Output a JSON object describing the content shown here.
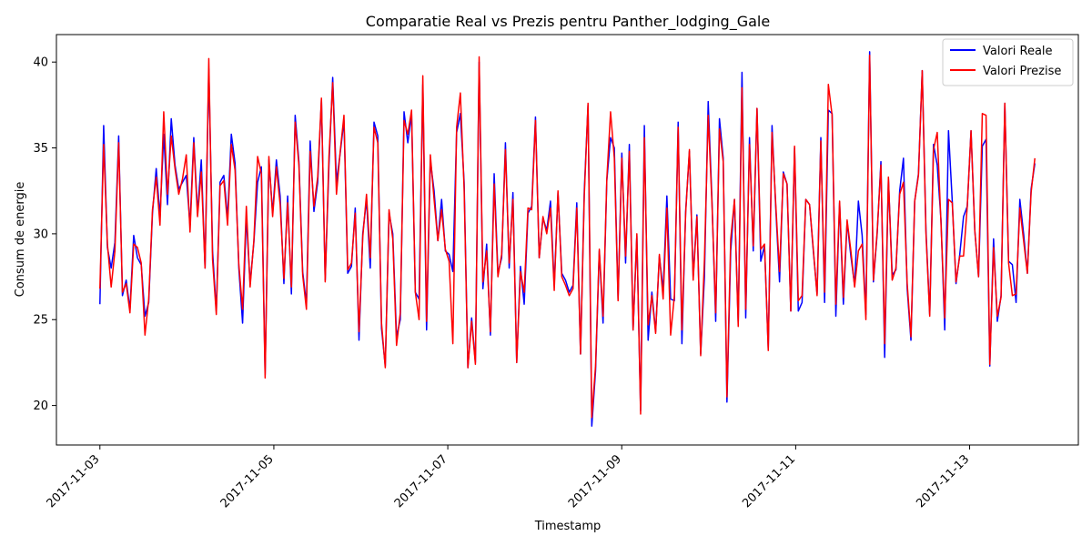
{
  "chart_data": {
    "type": "line",
    "title": "Comparatie Real vs Prezis pentru Panther_lodging_Gale",
    "xlabel": "Timestamp",
    "ylabel": "Consum de energie",
    "x_start": "2017-11-03",
    "x_end": "2017-11-13 18:00",
    "xlim": [
      "2017-11-02 12:00",
      "2017-11-14 06:00"
    ],
    "ylim": [
      17.7,
      41.6
    ],
    "x_ticks": [
      "2017-11-03",
      "2017-11-05",
      "2017-11-07",
      "2017-11-09",
      "2017-11-11",
      "2017-11-13"
    ],
    "y_ticks": [
      20,
      25,
      30,
      35,
      40
    ],
    "grid": false,
    "legend": {
      "position": "top-right"
    },
    "series": [
      {
        "name": "Valori Reale",
        "color": "#0000ff",
        "values": [
          25.9,
          36.3,
          29.2,
          28.0,
          29.5,
          35.7,
          26.4,
          27.3,
          25.6,
          29.9,
          28.6,
          28.2,
          25.2,
          26.0,
          31.2,
          33.8,
          31.0,
          35.8,
          31.7,
          36.7,
          34.0,
          32.6,
          33.0,
          33.4,
          30.5,
          35.6,
          31.2,
          34.3,
          28.0,
          39.6,
          29.0,
          25.5,
          33.0,
          33.4,
          30.9,
          35.8,
          34.1,
          28.0,
          24.8,
          31.0,
          27.1,
          29.5,
          33.0,
          33.9,
          21.8,
          34.3,
          31.2,
          34.3,
          32.2,
          27.1,
          32.2,
          26.5,
          36.9,
          34.2,
          27.8,
          25.9,
          35.4,
          31.3,
          33.0,
          37.8,
          27.3,
          34.0,
          39.1,
          33.0,
          34.7,
          36.6,
          27.7,
          28.1,
          31.5,
          23.8,
          30.0,
          32.0,
          28.0,
          36.5,
          35.7,
          24.5,
          22.3,
          31.2,
          30.0,
          24.0,
          25.0,
          37.1,
          35.3,
          37.0,
          26.6,
          26.2,
          38.7,
          24.4,
          34.3,
          32.5,
          29.6,
          32.0,
          29.0,
          28.8,
          27.8,
          35.9,
          37.0,
          33.0,
          22.2,
          25.1,
          22.5,
          40.0,
          26.8,
          29.4,
          24.1,
          33.5,
          27.7,
          28.6,
          35.3,
          28.0,
          32.4,
          22.5,
          28.1,
          25.9,
          31.2,
          31.6,
          36.8,
          28.6,
          30.9,
          30.2,
          31.9,
          27.0,
          32.4,
          27.7,
          27.3,
          26.6,
          27.0,
          31.8,
          23.0,
          32.5,
          37.5,
          18.8,
          22.0,
          29.0,
          24.8,
          33.1,
          35.6,
          35.0,
          26.2,
          34.7,
          28.3,
          35.2,
          24.4,
          29.9,
          19.7,
          36.3,
          23.8,
          26.6,
          24.3,
          28.7,
          26.7,
          32.2,
          26.2,
          26.1,
          36.5,
          23.6,
          31.3,
          34.8,
          27.5,
          31.1,
          23.0,
          27.5,
          37.7,
          32.0,
          24.9,
          36.7,
          34.4,
          20.2,
          29.0,
          32.0,
          24.8,
          39.4,
          25.1,
          35.6,
          29.0,
          37.3,
          28.4,
          29.3,
          23.3,
          36.3,
          31.5,
          27.2,
          33.6,
          32.9,
          25.5,
          35.0,
          25.5,
          26.0,
          32.0,
          31.7,
          29.0,
          26.5,
          35.6,
          26.0,
          37.2,
          37.0,
          25.2,
          31.8,
          25.9,
          30.7,
          28.7,
          27.0,
          31.9,
          29.9,
          25.3,
          40.6,
          27.2,
          30.0,
          34.2,
          22.8,
          33.2,
          27.6,
          27.9,
          32.5,
          34.4,
          26.8,
          23.8,
          31.9,
          33.5,
          39.5,
          30.2,
          25.3,
          35.2,
          34.0,
          30.8,
          24.4,
          36.0,
          31.9,
          27.1,
          28.8,
          31.0,
          31.6,
          36.0,
          30.2,
          27.5,
          35.1,
          35.5,
          22.3,
          29.7,
          24.9,
          26.4,
          37.6,
          28.4,
          28.2,
          26.0,
          32.0,
          30.0,
          27.7,
          32.6,
          34.1
        ],
        "values_note": "hourly-ish samples approximated; spaced evenly from x_start to x_end"
      },
      {
        "name": "Valori Prezise",
        "color": "#ff0000",
        "values": [
          26.8,
          35.2,
          29.4,
          26.9,
          29.0,
          35.3,
          26.6,
          27.1,
          25.4,
          29.4,
          29.2,
          28.3,
          24.1,
          26.2,
          31.4,
          33.3,
          30.5,
          37.1,
          32.3,
          35.7,
          33.8,
          32.3,
          33.2,
          34.6,
          30.1,
          35.3,
          31.0,
          33.6,
          28.0,
          40.2,
          28.5,
          25.3,
          32.8,
          33.1,
          30.5,
          35.2,
          33.7,
          28.2,
          25.6,
          31.6,
          26.9,
          29.6,
          34.5,
          33.5,
          21.6,
          34.5,
          31.0,
          33.9,
          31.7,
          27.4,
          31.8,
          26.9,
          36.5,
          34.0,
          27.6,
          25.6,
          34.8,
          31.6,
          33.3,
          37.9,
          27.2,
          34.5,
          38.8,
          32.3,
          34.8,
          36.9,
          27.9,
          28.3,
          31.2,
          24.3,
          29.8,
          32.3,
          28.6,
          36.2,
          35.3,
          24.8,
          22.2,
          31.4,
          29.7,
          23.5,
          25.4,
          36.6,
          35.8,
          37.2,
          26.6,
          25.0,
          39.2,
          24.9,
          34.6,
          32.0,
          29.6,
          31.4,
          29.1,
          28.4,
          23.6,
          36.2,
          38.2,
          32.6,
          22.2,
          24.9,
          22.4,
          40.3,
          27.2,
          29.0,
          24.3,
          32.9,
          27.5,
          28.8,
          34.9,
          28.3,
          32.0,
          22.5,
          27.8,
          26.6,
          31.5,
          31.4,
          36.6,
          28.6,
          31.0,
          30.0,
          31.5,
          26.7,
          32.5,
          27.5,
          27.0,
          26.4,
          26.8,
          31.5,
          23.0,
          32.2,
          37.6,
          19.3,
          22.3,
          29.1,
          25.2,
          33.2,
          37.1,
          34.4,
          26.1,
          34.4,
          28.7,
          34.8,
          24.4,
          30.0,
          19.5,
          35.6,
          24.7,
          26.4,
          24.2,
          28.8,
          26.2,
          31.5,
          24.1,
          26.4,
          36.2,
          24.4,
          31.2,
          34.9,
          27.3,
          31.0,
          22.9,
          28.5,
          36.9,
          31.8,
          25.4,
          36.1,
          34.2,
          20.5,
          29.7,
          32.0,
          24.6,
          38.5,
          25.6,
          35.2,
          29.3,
          37.3,
          29.1,
          29.4,
          23.2,
          35.9,
          31.7,
          27.8,
          33.5,
          32.9,
          25.5,
          35.1,
          26.1,
          26.4,
          32.0,
          31.7,
          29.1,
          26.4,
          35.4,
          26.6,
          38.7,
          36.9,
          25.9,
          31.9,
          26.3,
          30.8,
          29.0,
          26.9,
          29.0,
          29.4,
          25.0,
          40.4,
          27.3,
          30.1,
          34.0,
          23.6,
          33.3,
          27.3,
          28.0,
          32.3,
          33.0,
          27.1,
          24.0,
          31.9,
          33.4,
          39.5,
          30.0,
          25.2,
          34.9,
          35.9,
          30.6,
          25.1,
          32.0,
          31.8,
          27.2,
          28.7,
          28.7,
          31.6,
          36.0,
          30.2,
          27.5,
          37.0,
          36.9,
          22.4,
          29.2,
          25.2,
          26.3,
          37.6,
          28.3,
          26.4,
          26.5,
          31.5,
          29.6,
          27.7,
          32.4,
          34.4
        ]
      }
    ]
  }
}
